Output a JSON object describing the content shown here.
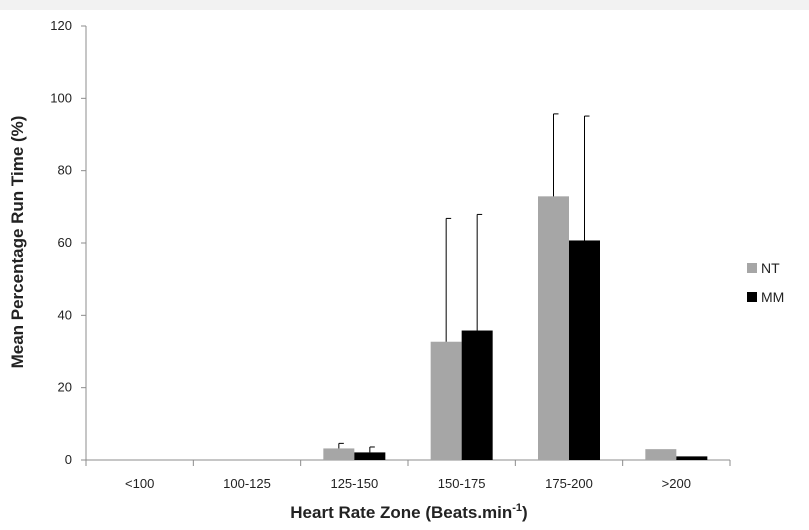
{
  "chart_data": {
    "type": "bar",
    "categories": [
      "<100",
      "100-125",
      "125-150",
      "150-175",
      "175-200",
      ">200"
    ],
    "series": [
      {
        "name": "NT",
        "color": "#a6a6a6",
        "values": [
          0,
          0,
          3.2,
          32.7,
          72.9,
          3.0
        ],
        "error_upper": [
          null,
          null,
          4.6,
          66.8,
          95.7,
          null
        ]
      },
      {
        "name": "MM",
        "color": "#000000",
        "values": [
          0,
          0,
          2.1,
          35.8,
          60.7,
          1.0
        ],
        "error_upper": [
          null,
          null,
          3.6,
          67.9,
          95.1,
          null
        ]
      }
    ],
    "ylim": [
      0,
      120
    ],
    "yticks": [
      0,
      20,
      40,
      60,
      80,
      100,
      120
    ],
    "ylabel": "Mean Percentage Run Time (%)",
    "xlabel_main": "Heart Rate Zone (Beats.min",
    "xlabel_superscript": "-1",
    "xlabel_close": ")",
    "grid": false,
    "legend": "right"
  }
}
